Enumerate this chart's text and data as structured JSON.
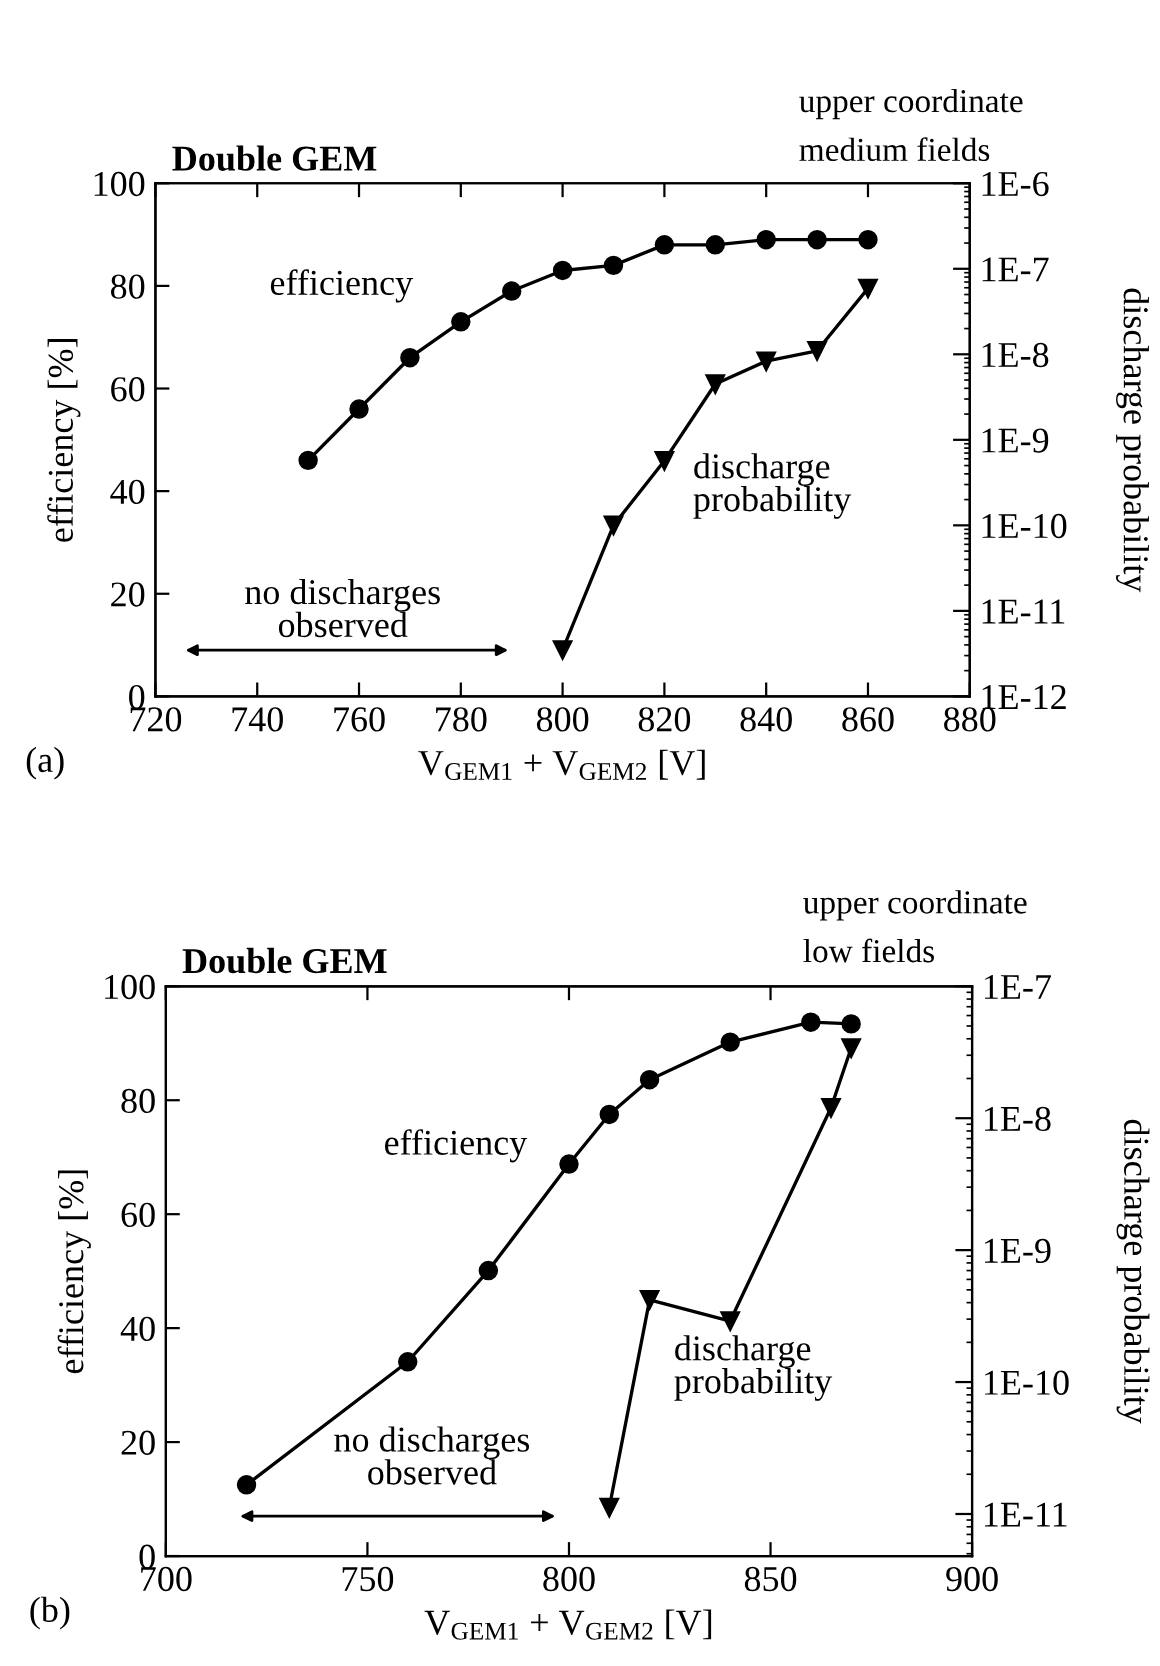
{
  "chart_data": [
    {
      "type": "line",
      "title": "Double GEM",
      "subtitle": "upper coordinate\nmedium fields",
      "xlabel": "V$_{GEM1}$ + V$_{GEM2}$ [V]",
      "ylabel": "efficiency [%]",
      "y2label": "discharge probability",
      "xlim": [
        720,
        880
      ],
      "xticks": [
        720,
        740,
        760,
        780,
        800,
        820,
        840,
        860,
        880
      ],
      "ylim": [
        0,
        100
      ],
      "yticks": [
        0,
        20,
        40,
        60,
        80,
        100
      ],
      "log": "y2",
      "y2lim": [
        1e-12,
        1e-06
      ],
      "y2ticks": [
        {
          "value": 1e-12,
          "label": "1E-12"
        },
        {
          "value": 1e-11,
          "label": "1E-11"
        },
        {
          "value": 1e-10,
          "label": "1E-10"
        },
        {
          "value": 1e-09,
          "label": "1E-9"
        },
        {
          "value": 1e-08,
          "label": "1E-8"
        },
        {
          "value": 1e-07,
          "label": "1E-7"
        },
        {
          "value": 1e-06,
          "label": "1E-6"
        }
      ],
      "series": [
        {
          "color": "#000000",
          "marker": "circle",
          "x": [
            750,
            760,
            770,
            780,
            790,
            800,
            810,
            820,
            830,
            840,
            850,
            860
          ],
          "values": [
            46,
            56,
            66,
            73,
            79,
            83,
            84,
            88,
            88,
            89,
            89,
            89
          ]
        },
        {
          "color": "#000000",
          "marker": "triangle",
          "axis": "y2",
          "x": [
            800,
            810,
            820,
            830,
            840,
            850,
            860
          ],
          "values": [
            3.5e-12,
            1e-10,
            5.7e-10,
            4.5e-09,
            8.3e-09,
            1.1e-08,
            5.9e-08
          ]
        }
      ],
      "annotations": [
        "efficiency",
        "discharge\nprobability",
        "no discharges\nobserved",
        "(a)"
      ]
    },
    {
      "type": "line",
      "title": "Double GEM",
      "subtitle": "upper coordinate\nlow fields",
      "xlabel": "V$_{GEM1}$ + V$_{GEM2}$ [V]",
      "ylabel": "efficiency [%]",
      "y2label": "discharge probability",
      "xlim": [
        700,
        900
      ],
      "xticks": [
        700,
        750,
        800,
        850,
        900
      ],
      "ylim": [
        0,
        100
      ],
      "yticks": [
        0,
        20,
        40,
        60,
        80,
        100
      ],
      "log": "y2",
      "y2lim": [
        4.8e-12,
        1e-07
      ],
      "y2ticks": [
        {
          "value": 1e-11,
          "label": "1E-11"
        },
        {
          "value": 1e-10,
          "label": "1E-10"
        },
        {
          "value": 1e-09,
          "label": "1E-9"
        },
        {
          "value": 1e-08,
          "label": "1E-8"
        },
        {
          "value": 1e-07,
          "label": "1E-7"
        }
      ],
      "series": [
        {
          "color": "#000000",
          "marker": "circle",
          "x": [
            720,
            760,
            780,
            800,
            810,
            820,
            840,
            860,
            870
          ],
          "values": [
            12.5,
            34.1,
            50.1,
            68.8,
            77.5,
            83.6,
            90.2,
            93.7,
            93.4
          ]
        },
        {
          "color": "#000000",
          "marker": "triangle",
          "axis": "y2",
          "x": [
            810,
            820,
            840,
            865,
            870
          ],
          "values": [
            1.12e-11,
            4.2e-10,
            2.9e-10,
            1.2e-08,
            3.4e-08
          ]
        }
      ],
      "annotations": [
        "efficiency",
        "discharge\nprobability",
        "no discharges\nobserved",
        "(b)"
      ]
    }
  ]
}
